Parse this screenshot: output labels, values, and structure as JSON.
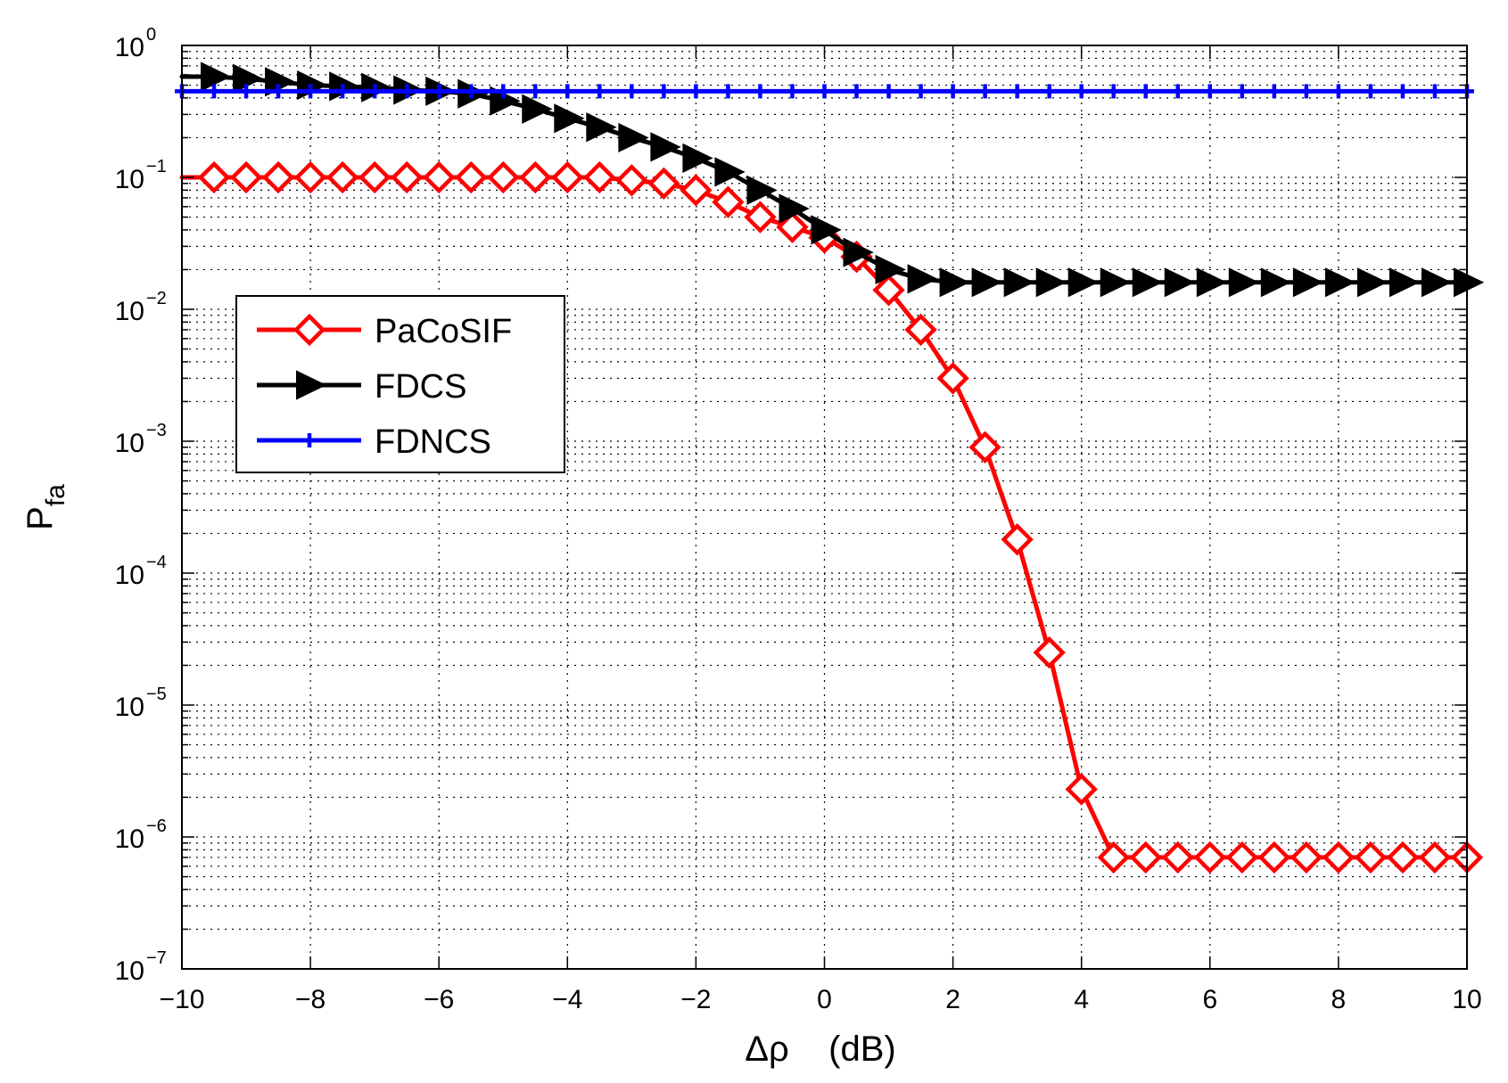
{
  "chart_data": {
    "type": "line",
    "title": "",
    "xlabel": "Δρ    (dB)",
    "ylabel": {
      "base": "P",
      "subscript": "fa"
    },
    "xlim": [
      -10,
      10
    ],
    "ylim": [
      1e-07,
      1
    ],
    "yscale": "log",
    "grid": true,
    "x_ticks": [
      -10,
      -8,
      -6,
      -4,
      -2,
      0,
      2,
      4,
      6,
      8,
      10
    ],
    "x_tick_labels": [
      "−10",
      "−8",
      "−6",
      "−4",
      "−2",
      "0",
      "2",
      "4",
      "6",
      "8",
      "10"
    ],
    "y_ticks": [
      {
        "value": 1,
        "base": "10",
        "exp": "0"
      },
      {
        "value": 0.1,
        "base": "10",
        "exp": "−1"
      },
      {
        "value": 0.01,
        "base": "10",
        "exp": "−2"
      },
      {
        "value": 0.001,
        "base": "10",
        "exp": "−3"
      },
      {
        "value": 0.0001,
        "base": "10",
        "exp": "−4"
      },
      {
        "value": 1e-05,
        "base": "10",
        "exp": "−5"
      },
      {
        "value": 1e-06,
        "base": "10",
        "exp": "−6"
      },
      {
        "value": 1e-07,
        "base": "10",
        "exp": "−7"
      }
    ],
    "legend_position": "center-left",
    "x": [
      -10,
      -9.5,
      -9,
      -8.5,
      -8,
      -7.5,
      -7,
      -6.5,
      -6,
      -5.5,
      -5,
      -4.5,
      -4,
      -3.5,
      -3,
      -2.5,
      -2,
      -1.5,
      -1,
      -0.5,
      0,
      0.5,
      1,
      1.5,
      2,
      2.5,
      3,
      3.5,
      4,
      4.5,
      5,
      5.5,
      6,
      6.5,
      7,
      7.5,
      8,
      8.5,
      9,
      9.5,
      10
    ],
    "series": [
      {
        "name": "PaCoSIF",
        "color": "#ff0000",
        "marker": "diamond",
        "values": [
          0.1,
          0.1,
          0.1,
          0.1,
          0.1,
          0.1,
          0.1,
          0.1,
          0.1,
          0.1,
          0.1,
          0.1,
          0.1,
          0.1,
          0.095,
          0.09,
          0.08,
          0.065,
          0.05,
          0.042,
          0.035,
          0.025,
          0.014,
          0.007,
          0.003,
          0.0009,
          0.00018,
          2.5e-05,
          2.3e-06,
          7e-07,
          7e-07,
          7e-07,
          7e-07,
          7e-07,
          7e-07,
          7e-07,
          7e-07,
          7e-07,
          7e-07,
          7e-07,
          7e-07
        ]
      },
      {
        "name": "FDCS",
        "color": "#000000",
        "marker": "triangle-right",
        "values": [
          0.58,
          0.58,
          0.56,
          0.53,
          0.5,
          0.49,
          0.48,
          0.46,
          0.45,
          0.43,
          0.38,
          0.33,
          0.28,
          0.24,
          0.2,
          0.17,
          0.14,
          0.11,
          0.08,
          0.058,
          0.04,
          0.027,
          0.02,
          0.017,
          0.016,
          0.016,
          0.016,
          0.016,
          0.016,
          0.016,
          0.016,
          0.016,
          0.016,
          0.016,
          0.016,
          0.016,
          0.016,
          0.016,
          0.016,
          0.016,
          0.016
        ]
      },
      {
        "name": "FDNCS",
        "color": "#0000ff",
        "marker": "plus",
        "values": [
          0.45,
          0.45,
          0.45,
          0.45,
          0.45,
          0.45,
          0.45,
          0.45,
          0.45,
          0.45,
          0.45,
          0.45,
          0.45,
          0.45,
          0.45,
          0.45,
          0.45,
          0.45,
          0.45,
          0.45,
          0.45,
          0.45,
          0.45,
          0.45,
          0.45,
          0.45,
          0.45,
          0.45,
          0.45,
          0.45,
          0.45,
          0.45,
          0.45,
          0.45,
          0.45,
          0.45,
          0.45,
          0.45,
          0.45,
          0.45,
          0.45
        ]
      }
    ]
  }
}
